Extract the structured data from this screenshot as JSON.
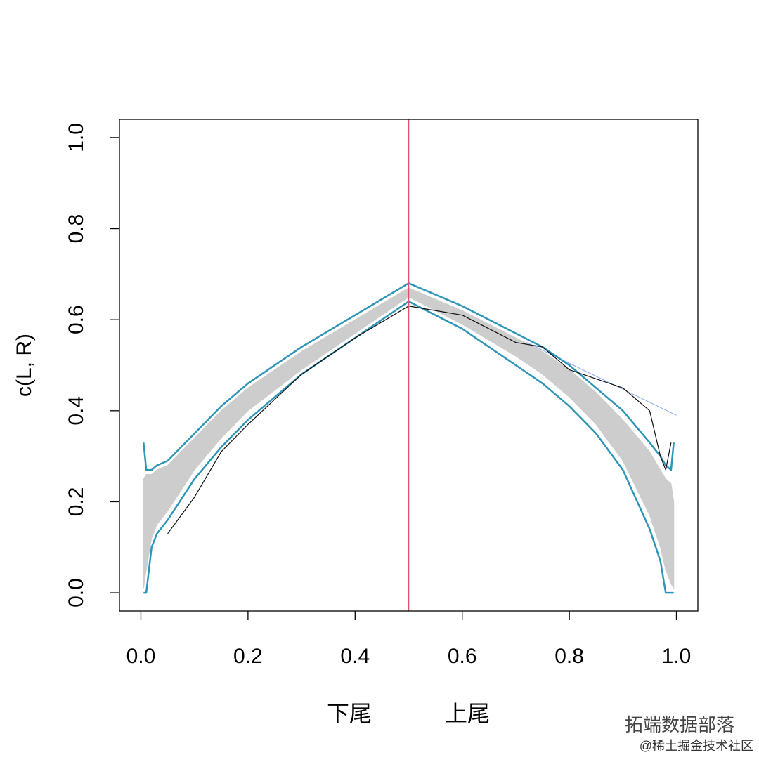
{
  "chart_data": {
    "type": "line",
    "ylabel": "c(L, R)",
    "x_annotations": [
      "下尾",
      "上尾"
    ],
    "watermarks": [
      "拓端数据部落",
      "@稀土掘金技术社区"
    ],
    "xlim": [
      -0.04,
      1.04
    ],
    "ylim": [
      -0.04,
      1.04
    ],
    "xticks": [
      {
        "value": 0,
        "label": "0.0"
      },
      0.2,
      0.4,
      0.6,
      0.8,
      {
        "value": 1,
        "label": "1.0"
      }
    ],
    "yticks": [
      {
        "value": 0,
        "label": "0.0"
      },
      0.2,
      0.4,
      0.6,
      0.8,
      {
        "value": 1,
        "label": "1.0"
      }
    ],
    "vline": {
      "x": 0.5,
      "color": "#e0506a"
    },
    "band": {
      "color": "#cdcdcd",
      "x": [
        0.005,
        0.01,
        0.02,
        0.03,
        0.05,
        0.1,
        0.15,
        0.2,
        0.3,
        0.4,
        0.5,
        0.6,
        0.7,
        0.75,
        0.8,
        0.85,
        0.9,
        0.95,
        0.97,
        0.98,
        0.99,
        0.995
      ],
      "upper": [
        0.25,
        0.26,
        0.26,
        0.27,
        0.28,
        0.34,
        0.4,
        0.45,
        0.53,
        0.6,
        0.67,
        0.62,
        0.56,
        0.53,
        0.49,
        0.44,
        0.38,
        0.31,
        0.27,
        0.25,
        0.24,
        0.2
      ],
      "lower": [
        0.01,
        0.05,
        0.12,
        0.15,
        0.18,
        0.27,
        0.34,
        0.4,
        0.49,
        0.57,
        0.65,
        0.59,
        0.52,
        0.48,
        0.43,
        0.37,
        0.29,
        0.17,
        0.1,
        0.05,
        0.02,
        0.01
      ]
    },
    "series": [
      {
        "color": "#8aa8f0",
        "width": 1,
        "x": [
          0.72,
          1.0
        ],
        "values": [
          0.55,
          0.39
        ]
      },
      {
        "color": "#2f95b8",
        "width": 2.5,
        "x": [
          0.005,
          0.01,
          0.02,
          0.03,
          0.05,
          0.1,
          0.15,
          0.2,
          0.3,
          0.4,
          0.5,
          0.6,
          0.7,
          0.75,
          0.8,
          0.85,
          0.9,
          0.95,
          0.97,
          0.98,
          0.99,
          0.995
        ],
        "values": [
          0.33,
          0.27,
          0.27,
          0.28,
          0.29,
          0.35,
          0.41,
          0.46,
          0.54,
          0.61,
          0.68,
          0.63,
          0.57,
          0.54,
          0.5,
          0.45,
          0.4,
          0.33,
          0.3,
          0.28,
          0.27,
          0.33
        ]
      },
      {
        "color": "#2f95b8",
        "width": 2.5,
        "x": [
          0.005,
          0.01,
          0.02,
          0.03,
          0.05,
          0.1,
          0.15,
          0.2,
          0.3,
          0.4,
          0.5,
          0.6,
          0.7,
          0.75,
          0.8,
          0.85,
          0.9,
          0.95,
          0.97,
          0.98,
          0.99,
          0.995
        ],
        "values": [
          0.0,
          0.0,
          0.1,
          0.13,
          0.16,
          0.25,
          0.32,
          0.38,
          0.48,
          0.56,
          0.64,
          0.58,
          0.5,
          0.46,
          0.41,
          0.35,
          0.27,
          0.14,
          0.07,
          0.0,
          0.0,
          0.0
        ]
      },
      {
        "color": "#111111",
        "width": 1.2,
        "x": [
          0.05,
          0.1,
          0.15,
          0.2,
          0.3,
          0.4,
          0.5,
          0.6,
          0.7,
          0.75,
          0.8,
          0.85,
          0.9,
          0.95,
          0.97,
          0.98,
          0.99
        ],
        "values": [
          0.13,
          0.21,
          0.31,
          0.37,
          0.48,
          0.56,
          0.63,
          0.61,
          0.55,
          0.54,
          0.49,
          0.47,
          0.45,
          0.4,
          0.3,
          0.27,
          0.33
        ]
      }
    ]
  }
}
